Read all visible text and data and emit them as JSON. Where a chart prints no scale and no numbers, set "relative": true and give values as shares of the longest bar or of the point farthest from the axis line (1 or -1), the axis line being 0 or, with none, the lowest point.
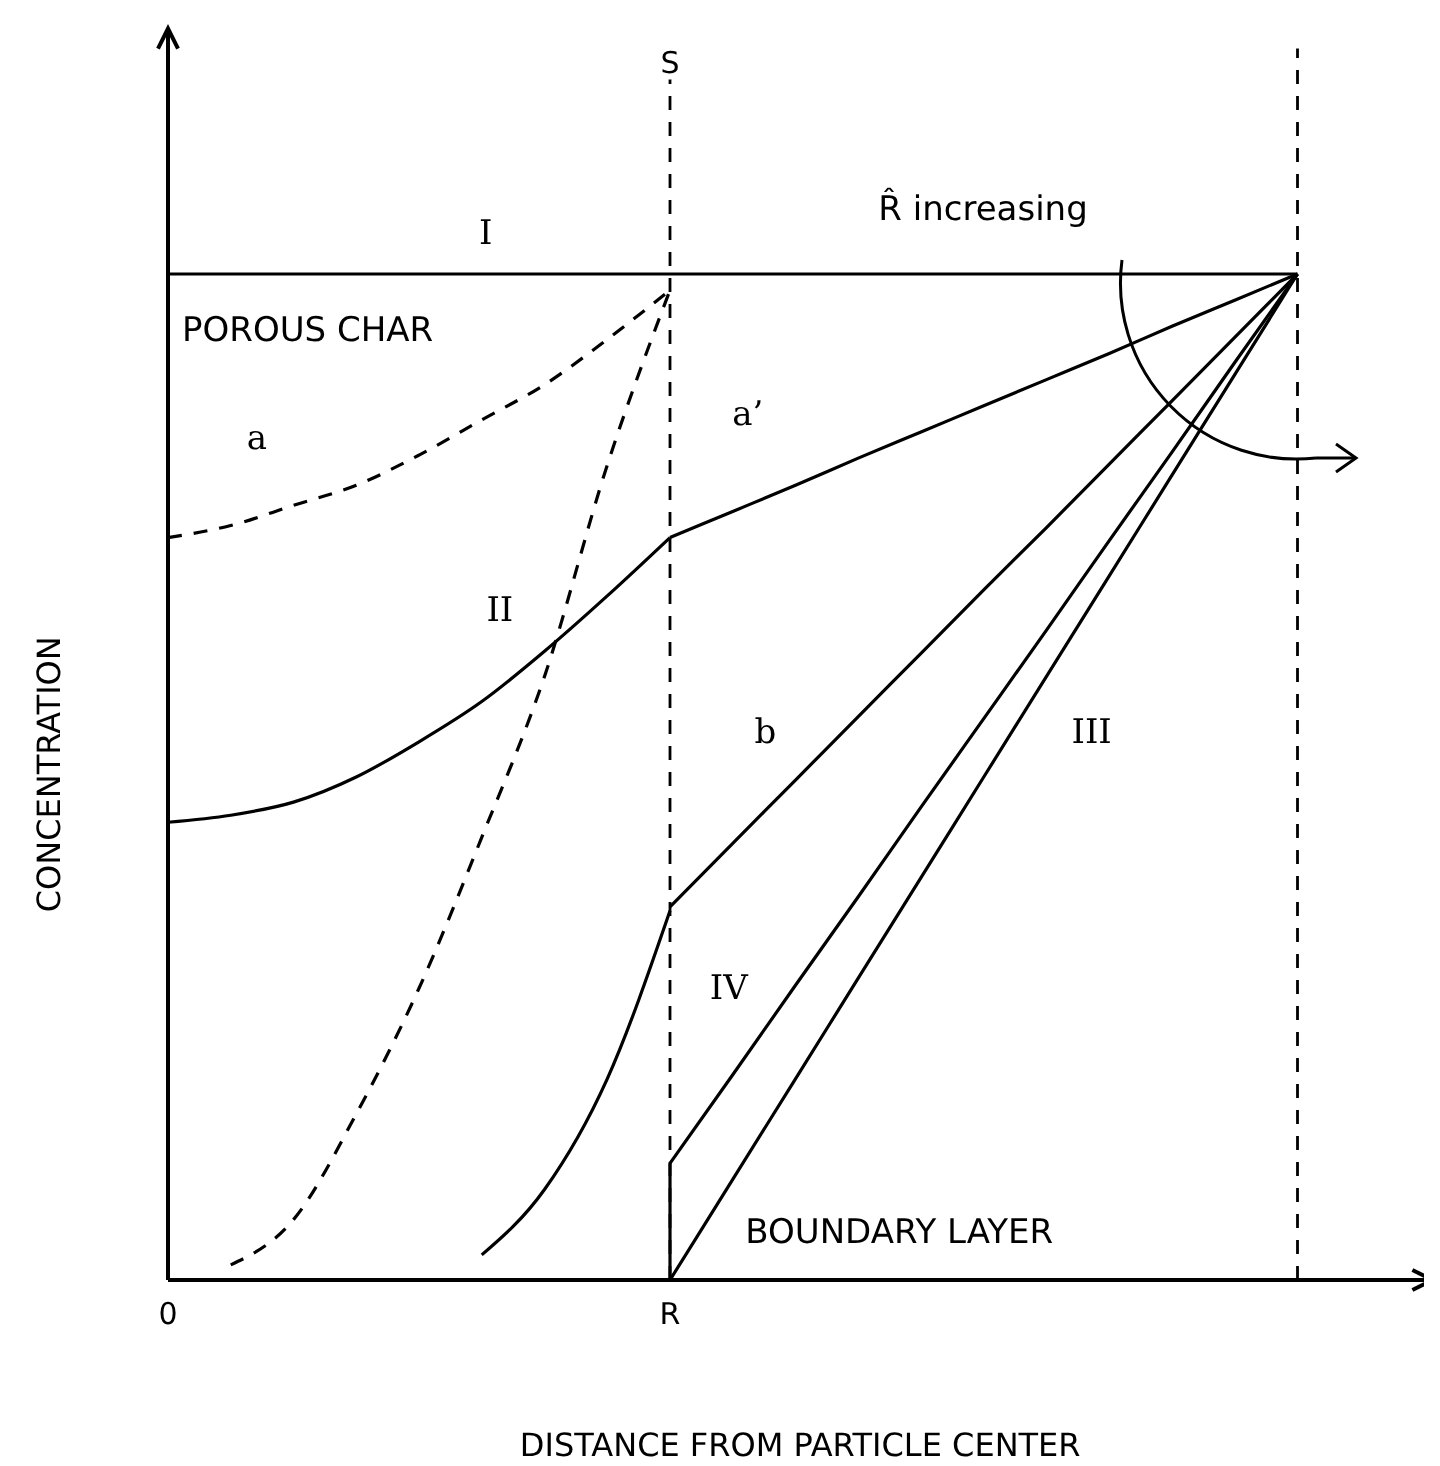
{
  "chart_data": {
    "type": "line",
    "relative": true,
    "xlabel": "DISTANCE FROM PARTICLE CENTER",
    "ylabel": "CONCENTRATION",
    "categories": [
      "0",
      null,
      null,
      null,
      null,
      null,
      null,
      null,
      "R",
      null,
      null,
      null,
      null,
      null,
      null,
      null,
      null,
      null,
      null
    ],
    "tick_labels": "x",
    "grid": false,
    "marker": "none",
    "line_style": "solid",
    "series": [
      {
        "color": "#000000",
        "values": [
          1,
          1,
          1,
          1,
          1,
          1,
          1,
          1,
          1,
          1,
          1,
          1,
          1,
          1,
          1,
          1,
          1,
          1,
          1
        ]
      },
      {
        "color": "#000000",
        "line_style": "dashed",
        "values": [
          0.738,
          0.75,
          0.77,
          0.79,
          0.82,
          0.855,
          0.89,
          0.935,
          0.984,
          null,
          null,
          null,
          null,
          null,
          null,
          null,
          null,
          null,
          null
        ]
      },
      {
        "color": "#000000",
        "values": [
          null,
          null,
          null,
          null,
          null,
          null,
          null,
          null,
          0.738,
          0.764,
          0.79,
          0.817,
          0.843,
          0.869,
          0.895,
          0.921,
          0.948,
          0.974,
          1
        ]
      },
      {
        "color": "#000000",
        "values": [
          0.455,
          0.462,
          0.475,
          0.5,
          0.535,
          0.575,
          0.625,
          0.68,
          0.738,
          null,
          null,
          null,
          null,
          null,
          null,
          null,
          null,
          null,
          null
        ]
      },
      {
        "color": "#000000",
        "values": [
          null,
          null,
          null,
          null,
          null,
          null,
          null,
          null,
          0.371,
          0.434,
          0.497,
          0.56,
          0.623,
          0.686,
          0.748,
          0.811,
          0.874,
          0.937,
          1
        ]
      },
      {
        "color": "#000000",
        "line_style": "dashed",
        "values": [
          null,
          0.015,
          0.06,
          0.165,
          0.29,
          0.44,
          0.6,
          0.81,
          0.984,
          null,
          null,
          null,
          null,
          null,
          null,
          null,
          null,
          null,
          null
        ]
      },
      {
        "color": "#000000",
        "values": [
          null,
          null,
          null,
          null,
          null,
          0.025,
          0.09,
          0.2,
          0.367,
          null,
          null,
          null,
          null,
          null,
          null,
          null,
          null,
          null,
          null
        ]
      },
      {
        "color": "#000000",
        "values": [
          null,
          null,
          null,
          null,
          null,
          null,
          null,
          null,
          0.116,
          0.204,
          0.293,
          0.381,
          0.47,
          0.558,
          0.646,
          0.735,
          0.823,
          0.912,
          1
        ]
      },
      {
        "color": "#000000",
        "values": [
          null,
          null,
          null,
          null,
          null,
          null,
          null,
          null,
          0,
          0.1,
          0.2,
          0.3,
          0.4,
          0.5,
          0.6,
          0.7,
          0.8,
          0.9,
          1
        ]
      }
    ],
    "ref_lines": [
      {
        "axis": "x",
        "value": "R",
        "label": "S",
        "line_style": "dashed",
        "color": "#000000"
      }
    ],
    "annotations": [
      "I",
      "a",
      "a’",
      "II",
      "b",
      "III",
      "IV",
      "POROUS CHAR",
      "BOUNDARY LAYER",
      "R̂ increasing"
    ]
  }
}
